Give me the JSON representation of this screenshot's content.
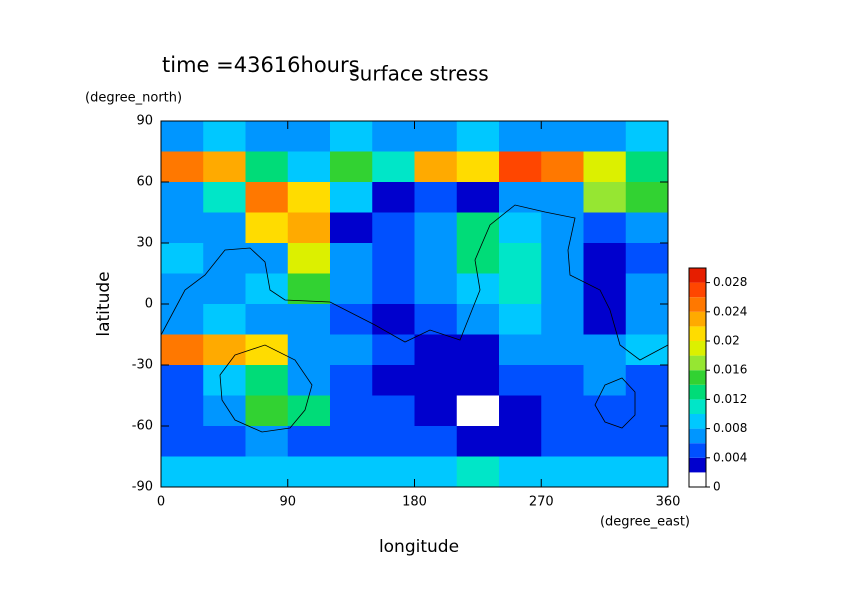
{
  "chart_data": {
    "type": "contour",
    "title": "surface stress",
    "subtitle": "time =43616hours",
    "xlabel": "longitude",
    "xunit": "(degree_east)",
    "ylabel": "latitude",
    "yunit": "(degree_north)",
    "xlim": [
      0,
      360
    ],
    "xticks": [
      0,
      90,
      180,
      270,
      360
    ],
    "ylim": [
      -90,
      90
    ],
    "yticks": [
      -90,
      -60,
      -30,
      0,
      30,
      60,
      90
    ],
    "x": [
      15,
      45,
      75,
      105,
      135,
      165,
      195,
      225,
      255,
      285,
      315,
      345
    ],
    "y": [
      82.5,
      67.5,
      52.5,
      37.5,
      22.5,
      7.5,
      -7.5,
      -22.5,
      -37.5,
      -52.5,
      -67.5,
      -82.5
    ],
    "z": [
      [
        0.007,
        0.008,
        0.006,
        0.007,
        0.008,
        0.007,
        0.006,
        0.008,
        0.007,
        0.006,
        0.007,
        0.008
      ],
      [
        0.024,
        0.022,
        0.012,
        0.008,
        0.014,
        0.01,
        0.022,
        0.02,
        0.026,
        0.024,
        0.018,
        0.012
      ],
      [
        0.006,
        0.01,
        0.024,
        0.02,
        0.008,
        0.003,
        0.004,
        0.003,
        0.006,
        0.006,
        0.016,
        0.014
      ],
      [
        0.006,
        0.007,
        0.02,
        0.022,
        0.003,
        0.004,
        0.006,
        0.012,
        0.008,
        0.006,
        0.004,
        0.006
      ],
      [
        0.008,
        0.006,
        0.006,
        0.018,
        0.006,
        0.004,
        0.006,
        0.012,
        0.01,
        0.006,
        0.002,
        0.004
      ],
      [
        0.006,
        0.006,
        0.008,
        0.014,
        0.006,
        0.004,
        0.006,
        0.008,
        0.01,
        0.006,
        0.002,
        0.006
      ],
      [
        0.006,
        0.008,
        0.006,
        0.006,
        0.004,
        0.002,
        0.004,
        0.006,
        0.008,
        0.006,
        0.003,
        0.006
      ],
      [
        0.024,
        0.022,
        0.02,
        0.006,
        0.006,
        0.004,
        0.002,
        0.002,
        0.006,
        0.006,
        0.006,
        0.008
      ],
      [
        0.005,
        0.008,
        0.012,
        0.006,
        0.005,
        0.002,
        0.002,
        0.003,
        0.005,
        0.004,
        0.006,
        0.005
      ],
      [
        0.005,
        0.006,
        0.014,
        0.012,
        0.005,
        0.005,
        0.002,
        0.001,
        0.002,
        0.004,
        0.005,
        0.005
      ],
      [
        0.005,
        0.005,
        0.006,
        0.005,
        0.005,
        0.005,
        0.004,
        0.002,
        0.003,
        0.004,
        0.004,
        0.005
      ],
      [
        0.008,
        0.008,
        0.008,
        0.009,
        0.008,
        0.008,
        0.008,
        0.01,
        0.009,
        0.008,
        0.008,
        0.008
      ]
    ],
    "levels": [
      0,
      0.002,
      0.004,
      0.006,
      0.008,
      0.01,
      0.012,
      0.014,
      0.016,
      0.018,
      0.02,
      0.022,
      0.024,
      0.026,
      0.028,
      0.03
    ],
    "colors": [
      "#ffffff",
      "#0000cd",
      "#0050ff",
      "#0096ff",
      "#00c8ff",
      "#00e6c8",
      "#00dc78",
      "#32d232",
      "#96e632",
      "#dcf000",
      "#ffdc00",
      "#ffaa00",
      "#ff7800",
      "#ff4600",
      "#e61e00"
    ],
    "colorbar_ticks": [
      0,
      0.004,
      0.008,
      0.012,
      0.016,
      0.02,
      0.024,
      0.028
    ]
  }
}
